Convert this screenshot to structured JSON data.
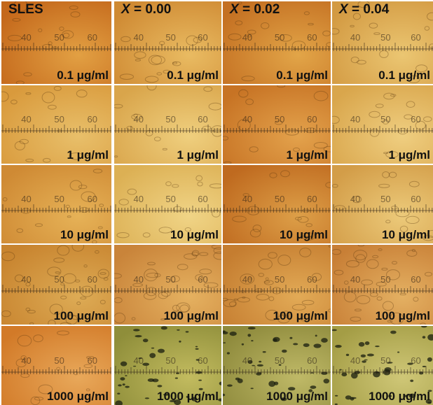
{
  "columns": [
    {
      "label": "SLES",
      "italic_prefix": "",
      "value_text": "SLES"
    },
    {
      "label": "X = 0.00",
      "italic_prefix": "X",
      "value_text": " = 0.00"
    },
    {
      "label": "X = 0.02",
      "italic_prefix": "X",
      "value_text": " = 0.02"
    },
    {
      "label": "X = 0.04",
      "italic_prefix": "X",
      "value_text": " = 0.04"
    }
  ],
  "rows": [
    {
      "concentration": "0.1 μg/ml"
    },
    {
      "concentration": "1 μg/ml"
    },
    {
      "concentration": "10 μg/ml"
    },
    {
      "concentration": "100 μg/ml"
    },
    {
      "concentration": "1000 μg/ml"
    }
  ],
  "scale_labels": [
    "40",
    "50",
    "60"
  ],
  "colors": {
    "orange_dark": "#c9721f",
    "orange_light": "#e7b75a",
    "yellow": "#ead27c",
    "olive": "#a9a248",
    "separator": "#ffffff"
  }
}
